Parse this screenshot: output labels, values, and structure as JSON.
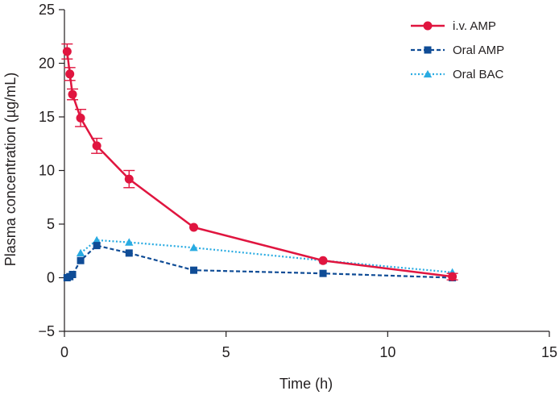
{
  "chart_data": {
    "type": "line",
    "xlabel": "Time (h)",
    "ylabel": "Plasma concentration (µg/mL)",
    "xlim": [
      0,
      15
    ],
    "ylim": [
      -5,
      25
    ],
    "xticks": [
      0,
      5,
      10,
      15
    ],
    "yticks": [
      -5,
      0,
      5,
      10,
      15,
      20,
      25
    ],
    "grid": false,
    "legend": "top-right",
    "series": [
      {
        "name": "i.v. AMP",
        "color": "#e0153f",
        "marker": "circle",
        "line_style": "solid",
        "x": [
          0.083,
          0.167,
          0.25,
          0.5,
          1,
          2,
          4,
          8,
          12
        ],
        "y": [
          21.1,
          19.0,
          17.1,
          14.9,
          12.3,
          9.2,
          4.7,
          1.6,
          0.1
        ],
        "error": [
          0.7,
          0.6,
          0.5,
          0.8,
          0.7,
          0.8,
          0,
          0,
          0.3
        ]
      },
      {
        "name": "Oral AMP",
        "color": "#0f4c96",
        "marker": "square",
        "line_style": "dashed",
        "x": [
          0.083,
          0.167,
          0.25,
          0.5,
          1,
          2,
          4,
          8,
          12
        ],
        "y": [
          0.0,
          0.1,
          0.3,
          1.6,
          3.0,
          2.3,
          0.7,
          0.4,
          0.0
        ]
      },
      {
        "name": "Oral BAC",
        "color": "#29abe2",
        "marker": "triangle",
        "line_style": "dotted",
        "x": [
          0.5,
          1,
          2,
          4,
          8,
          12
        ],
        "y": [
          2.3,
          3.5,
          3.3,
          2.8,
          1.6,
          0.5
        ]
      }
    ]
  }
}
